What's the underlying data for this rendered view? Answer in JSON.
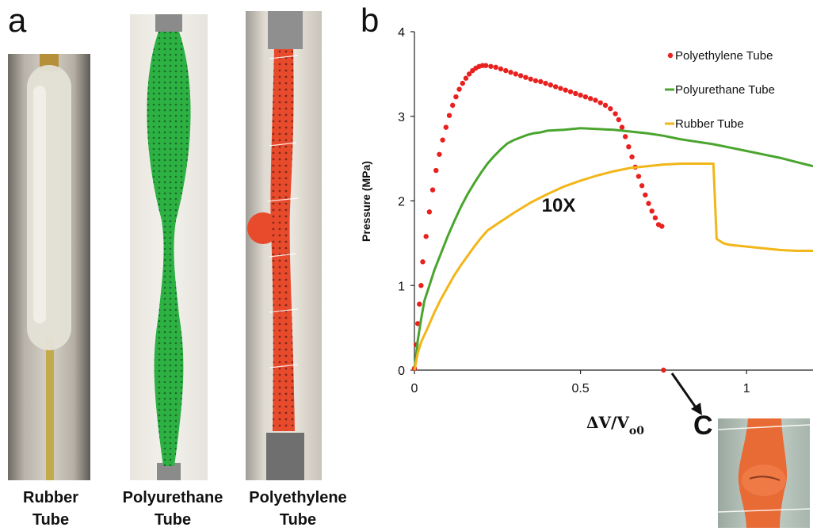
{
  "panels": {
    "a": "a",
    "b": "b",
    "c": "C"
  },
  "captions": {
    "rubber": [
      "Rubber",
      "Tube"
    ],
    "polyurethane": [
      "Polyurethane",
      "Tube"
    ],
    "polyethylene": [
      "Polyethylene",
      "Tube"
    ]
  },
  "chart_data": {
    "type": "line",
    "title": "",
    "xlabel": "ΔV/V",
    "xlabel_sub": "o0",
    "ylabel": "Pressure (MPa)",
    "xlim": [
      0,
      1.2
    ],
    "ylim": [
      0,
      4
    ],
    "xticks": [
      0,
      0.5,
      1
    ],
    "xtick_labels": [
      "0",
      "0.5",
      "1"
    ],
    "yticks": [
      0,
      1,
      2,
      3,
      4
    ],
    "ytick_labels": [
      "0",
      "1",
      "2",
      "3",
      "4"
    ],
    "grid": false,
    "legend_position": "top-right",
    "annotations": [
      {
        "text": "10X",
        "x": 0.45,
        "y": 1.95
      }
    ],
    "series": [
      {
        "name": "Polyethylene Tube",
        "style": "markers",
        "color": "#e8211f",
        "x": [
          0,
          0.005,
          0.01,
          0.015,
          0.02,
          0.025,
          0.035,
          0.045,
          0.055,
          0.065,
          0.075,
          0.085,
          0.095,
          0.105,
          0.115,
          0.125,
          0.135,
          0.145,
          0.155,
          0.165,
          0.175,
          0.185,
          0.195,
          0.205,
          0.215,
          0.23,
          0.245,
          0.26,
          0.275,
          0.29,
          0.305,
          0.32,
          0.335,
          0.35,
          0.365,
          0.38,
          0.395,
          0.41,
          0.425,
          0.44,
          0.455,
          0.47,
          0.485,
          0.5,
          0.515,
          0.53,
          0.545,
          0.56,
          0.575,
          0.59,
          0.605,
          0.615,
          0.625,
          0.635,
          0.645,
          0.655,
          0.665,
          0.675,
          0.685,
          0.695,
          0.705,
          0.715,
          0.725,
          0.735,
          0.745,
          0.75
        ],
        "y": [
          0.02,
          0.3,
          0.55,
          0.78,
          1.0,
          1.28,
          1.58,
          1.87,
          2.13,
          2.36,
          2.55,
          2.72,
          2.87,
          3.01,
          3.13,
          3.23,
          3.32,
          3.39,
          3.45,
          3.5,
          3.54,
          3.57,
          3.59,
          3.6,
          3.6,
          3.59,
          3.58,
          3.56,
          3.54,
          3.52,
          3.5,
          3.48,
          3.46,
          3.44,
          3.42,
          3.41,
          3.39,
          3.37,
          3.35,
          3.33,
          3.31,
          3.29,
          3.27,
          3.25,
          3.23,
          3.21,
          3.19,
          3.16,
          3.13,
          3.09,
          3.03,
          2.96,
          2.87,
          2.76,
          2.64,
          2.52,
          2.4,
          2.29,
          2.18,
          2.07,
          1.97,
          1.88,
          1.8,
          1.72,
          1.7,
          0.0
        ]
      },
      {
        "name": "Polyurethane Tube",
        "style": "line",
        "color": "#4aa52e",
        "x": [
          0,
          0.01,
          0.02,
          0.03,
          0.045,
          0.06,
          0.08,
          0.1,
          0.12,
          0.14,
          0.16,
          0.18,
          0.2,
          0.22,
          0.24,
          0.26,
          0.28,
          0.3,
          0.32,
          0.34,
          0.36,
          0.38,
          0.4,
          0.45,
          0.5,
          0.55,
          0.6,
          0.65,
          0.7,
          0.75,
          0.8,
          0.85,
          0.9,
          0.95,
          1.0,
          1.05,
          1.1,
          1.15,
          1.2
        ],
        "y": [
          0,
          0.35,
          0.6,
          0.82,
          1.0,
          1.18,
          1.38,
          1.58,
          1.76,
          1.93,
          2.08,
          2.21,
          2.33,
          2.44,
          2.53,
          2.61,
          2.68,
          2.72,
          2.75,
          2.78,
          2.8,
          2.81,
          2.83,
          2.84,
          2.86,
          2.85,
          2.84,
          2.82,
          2.8,
          2.77,
          2.73,
          2.7,
          2.67,
          2.63,
          2.59,
          2.55,
          2.51,
          2.46,
          2.41
        ]
      },
      {
        "name": "Rubber Tube",
        "style": "line",
        "color": "#f2b619",
        "x": [
          0,
          0.01,
          0.02,
          0.04,
          0.06,
          0.08,
          0.1,
          0.12,
          0.14,
          0.16,
          0.18,
          0.2,
          0.22,
          0.25,
          0.3,
          0.35,
          0.4,
          0.45,
          0.5,
          0.55,
          0.6,
          0.65,
          0.7,
          0.75,
          0.8,
          0.85,
          0.9,
          0.91,
          0.93,
          0.95,
          1.0,
          1.05,
          1.1,
          1.15,
          1.2
        ],
        "y": [
          0,
          0.2,
          0.33,
          0.5,
          0.68,
          0.84,
          0.98,
          1.12,
          1.24,
          1.35,
          1.46,
          1.56,
          1.65,
          1.73,
          1.86,
          1.98,
          2.08,
          2.17,
          2.24,
          2.3,
          2.35,
          2.39,
          2.41,
          2.43,
          2.44,
          2.44,
          2.44,
          1.55,
          1.5,
          1.48,
          1.46,
          1.44,
          1.42,
          1.41,
          1.41
        ]
      }
    ]
  }
}
